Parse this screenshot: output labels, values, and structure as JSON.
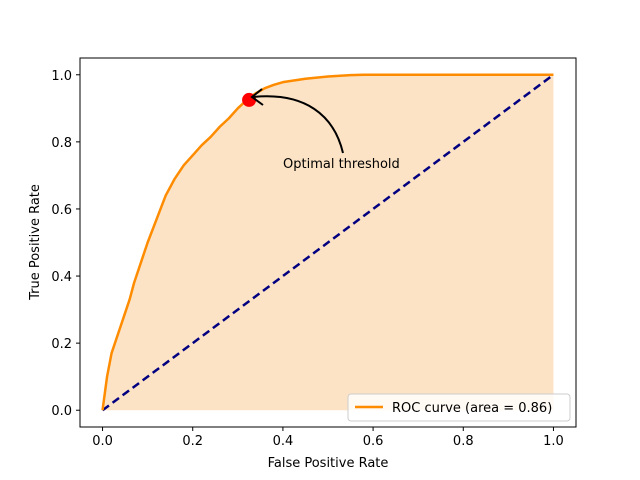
{
  "chart_data": {
    "type": "line",
    "xlabel": "False Positive Rate",
    "ylabel": "True Positive Rate",
    "xlim": [
      -0.05,
      1.05
    ],
    "ylim": [
      -0.05,
      1.05
    ],
    "xticks": [
      "0.0",
      "0.2",
      "0.4",
      "0.6",
      "0.8",
      "1.0"
    ],
    "yticks": [
      "0.0",
      "0.2",
      "0.4",
      "0.6",
      "0.8",
      "1.0"
    ],
    "grid": false,
    "legend_position": "lower-right",
    "series": [
      {
        "name": "ROC curve (area = 0.86)",
        "color": "#ff8c00",
        "fill": "#fde3c5",
        "x": [
          0.0,
          0.005,
          0.01,
          0.02,
          0.03,
          0.04,
          0.05,
          0.06,
          0.07,
          0.08,
          0.09,
          0.1,
          0.12,
          0.14,
          0.16,
          0.18,
          0.2,
          0.22,
          0.24,
          0.26,
          0.28,
          0.3,
          0.32,
          0.34,
          0.36,
          0.38,
          0.4,
          0.45,
          0.5,
          0.55,
          0.58,
          0.7,
          0.8,
          0.9,
          1.0
        ],
        "y": [
          0.0,
          0.05,
          0.1,
          0.17,
          0.21,
          0.25,
          0.29,
          0.33,
          0.38,
          0.42,
          0.46,
          0.5,
          0.57,
          0.64,
          0.69,
          0.73,
          0.76,
          0.79,
          0.815,
          0.845,
          0.87,
          0.9,
          0.925,
          0.945,
          0.96,
          0.97,
          0.978,
          0.988,
          0.995,
          0.999,
          1.0,
          1.0,
          1.0,
          1.0,
          1.0
        ]
      },
      {
        "name": "",
        "color": "#000080",
        "dashed": true,
        "x": [
          0.0,
          1.0
        ],
        "y": [
          0.0,
          1.0
        ]
      }
    ],
    "optimal_point": {
      "x": 0.325,
      "y": 0.925,
      "color": "#ff0000"
    },
    "annotation": {
      "text": "Optimal threshold",
      "x": 0.4,
      "y": 0.73
    }
  }
}
